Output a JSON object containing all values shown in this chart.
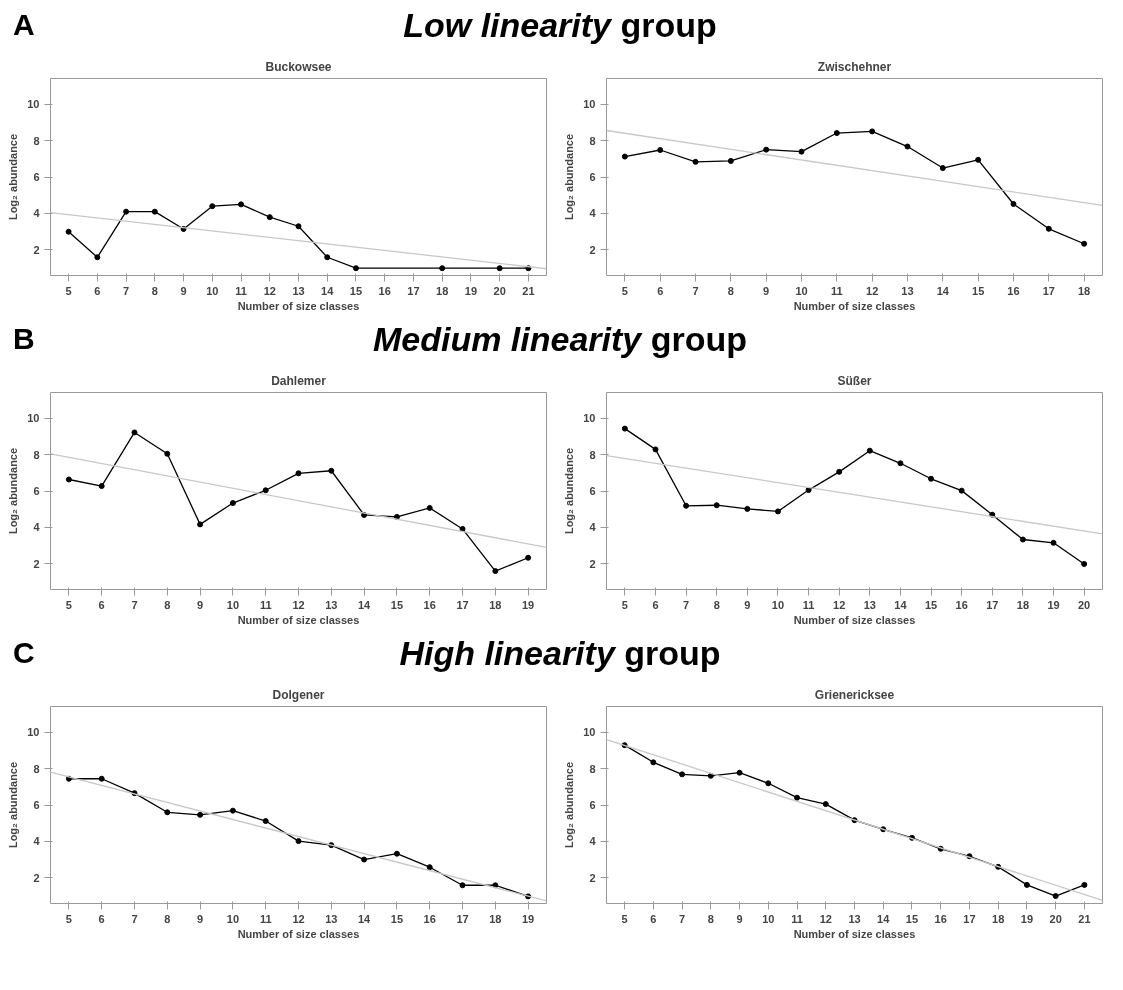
{
  "chart_data": [
    {
      "type": "line",
      "title": "Buckowsee",
      "xlabel": "Number of size classes",
      "ylabel": "Log₂ abundance",
      "annotations": [
        "A",
        "Low linearity",
        "group"
      ],
      "xlim": [
        4.37,
        21.63
      ],
      "ylim": [
        0.6,
        11.4
      ],
      "xticks": [
        5,
        6,
        7,
        8,
        9,
        10,
        11,
        12,
        13,
        14,
        15,
        16,
        17,
        18,
        19,
        20,
        21
      ],
      "yticks": [
        2,
        4,
        6,
        8,
        10
      ],
      "series": [
        {
          "color": "#000000",
          "marker": "circle",
          "x": [
            5,
            6,
            7,
            8,
            9,
            10,
            11,
            12,
            13,
            14,
            15,
            18,
            20,
            21
          ],
          "values": [
            3.0,
            1.6,
            4.1,
            4.1,
            3.15,
            4.4,
            4.5,
            3.8,
            3.3,
            1.6,
            1.0,
            1.0,
            1.0,
            1.0
          ]
        },
        {
          "color": "#c8c8c8",
          "marker": "none",
          "x": [
            4.37,
            21.63
          ],
          "values": [
            4.05,
            0.97
          ]
        }
      ]
    },
    {
      "type": "line",
      "title": "Zwischehner",
      "xlabel": "Number of size classes",
      "ylabel": "Log₂ abundance",
      "xlim": [
        4.48,
        18.52
      ],
      "ylim": [
        0.6,
        11.4
      ],
      "xticks": [
        5,
        6,
        7,
        8,
        9,
        10,
        11,
        12,
        13,
        14,
        15,
        16,
        17,
        18
      ],
      "yticks": [
        2,
        4,
        6,
        8,
        10
      ],
      "series": [
        {
          "color": "#000000",
          "marker": "circle",
          "x": [
            5,
            6,
            7,
            8,
            9,
            10,
            11,
            12,
            13,
            14,
            15,
            16,
            17,
            18
          ],
          "values": [
            7.12,
            7.48,
            6.83,
            6.88,
            7.5,
            7.39,
            8.41,
            8.5,
            7.67,
            6.49,
            6.94,
            4.52,
            3.16,
            2.34
          ]
        },
        {
          "color": "#c8c8c8",
          "marker": "none",
          "x": [
            4.48,
            18.52
          ],
          "values": [
            8.55,
            4.44
          ]
        }
      ]
    },
    {
      "type": "line",
      "title": "Dahlemer",
      "xlabel": "Number of size classes",
      "ylabel": "Log₂ abundance",
      "annotations": [
        "B",
        "Medium linearity",
        "group"
      ],
      "xlim": [
        4.44,
        19.56
      ],
      "ylim": [
        0.6,
        11.4
      ],
      "xticks": [
        5,
        6,
        7,
        8,
        9,
        10,
        11,
        12,
        13,
        14,
        15,
        16,
        17,
        18,
        19
      ],
      "yticks": [
        2,
        4,
        6,
        8,
        10
      ],
      "series": [
        {
          "color": "#000000",
          "marker": "circle",
          "x": [
            5,
            6,
            7,
            8,
            9,
            10,
            11,
            12,
            13,
            14,
            15,
            16,
            17,
            18,
            19
          ],
          "values": [
            6.63,
            6.27,
            9.21,
            8.04,
            4.17,
            5.34,
            6.04,
            6.97,
            7.11,
            4.69,
            4.58,
            5.07,
            3.92,
            1.61,
            2.34
          ]
        },
        {
          "color": "#c8c8c8",
          "marker": "none",
          "x": [
            4.44,
            19.56
          ],
          "values": [
            8.03,
            2.91
          ]
        }
      ]
    },
    {
      "type": "line",
      "title": "Süßer",
      "xlabel": "Number of size classes",
      "ylabel": "Log₂ abundance",
      "xlim": [
        4.4,
        20.6
      ],
      "ylim": [
        0.6,
        11.4
      ],
      "xticks": [
        5,
        6,
        7,
        8,
        9,
        10,
        11,
        12,
        13,
        14,
        15,
        16,
        17,
        18,
        19,
        20
      ],
      "yticks": [
        2,
        4,
        6,
        8,
        10
      ],
      "series": [
        {
          "color": "#000000",
          "marker": "circle",
          "x": [
            5,
            6,
            7,
            8,
            9,
            10,
            11,
            12,
            13,
            14,
            15,
            16,
            17,
            18,
            19,
            20
          ],
          "values": [
            9.42,
            8.28,
            5.19,
            5.22,
            5.02,
            4.88,
            6.05,
            7.05,
            8.21,
            7.52,
            6.67,
            6.02,
            4.7,
            3.34,
            3.16,
            2.0
          ]
        },
        {
          "color": "#c8c8c8",
          "marker": "none",
          "x": [
            4.4,
            20.6
          ],
          "values": [
            7.94,
            3.65
          ]
        }
      ]
    },
    {
      "type": "line",
      "title": "Dolgener",
      "xlabel": "Number of size classes",
      "ylabel": "Log₂ abundance",
      "annotations": [
        "C",
        "High linearity",
        "group"
      ],
      "xlim": [
        4.44,
        19.56
      ],
      "ylim": [
        0.6,
        11.4
      ],
      "xticks": [
        5,
        6,
        7,
        8,
        9,
        10,
        11,
        12,
        13,
        14,
        15,
        16,
        17,
        18,
        19
      ],
      "yticks": [
        2,
        4,
        6,
        8,
        10
      ],
      "series": [
        {
          "color": "#000000",
          "marker": "circle",
          "x": [
            5,
            6,
            7,
            8,
            9,
            10,
            11,
            12,
            13,
            14,
            15,
            16,
            17,
            18,
            19
          ],
          "values": [
            7.44,
            7.44,
            6.65,
            5.6,
            5.46,
            5.69,
            5.12,
            4.02,
            3.8,
            3.01,
            3.33,
            2.59,
            1.6,
            1.6,
            0.99
          ]
        },
        {
          "color": "#c8c8c8",
          "marker": "none",
          "x": [
            4.44,
            19.56
          ],
          "values": [
            7.8,
            0.74
          ]
        }
      ]
    },
    {
      "type": "line",
      "title": "Grienericksee",
      "xlabel": "Number of size classes",
      "ylabel": "Log₂ abundance",
      "xlim": [
        4.37,
        21.63
      ],
      "ylim": [
        0.6,
        11.4
      ],
      "xticks": [
        5,
        6,
        7,
        8,
        9,
        10,
        11,
        12,
        13,
        14,
        15,
        16,
        17,
        18,
        19,
        20,
        21
      ],
      "yticks": [
        2,
        4,
        6,
        8,
        10
      ],
      "series": [
        {
          "color": "#000000",
          "marker": "circle",
          "x": [
            5,
            6,
            7,
            8,
            9,
            10,
            11,
            12,
            13,
            14,
            15,
            16,
            17,
            18,
            19,
            20,
            21
          ],
          "values": [
            9.28,
            8.34,
            7.68,
            7.6,
            7.77,
            7.19,
            6.4,
            6.05,
            5.17,
            4.67,
            4.2,
            3.6,
            3.19,
            2.61,
            1.62,
            1.01,
            1.62
          ]
        },
        {
          "color": "#c8c8c8",
          "marker": "none",
          "x": [
            4.37,
            21.63
          ],
          "values": [
            9.59,
            0.77
          ]
        }
      ]
    }
  ]
}
